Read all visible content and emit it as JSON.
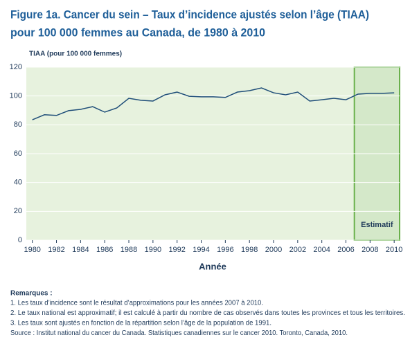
{
  "chart_data": {
    "type": "line",
    "title": [
      "Figure 1a. Cancer du sein – Taux d’incidence ajustés selon l’âge (TIAA)",
      "pour 100 000 femmes au Canada, de 1980 à 2010"
    ],
    "y_label": "TIAA (pour 100 000 femmes)",
    "x_label": "Année",
    "x": [
      1980,
      1981,
      1982,
      1983,
      1984,
      1985,
      1986,
      1987,
      1988,
      1989,
      1990,
      1991,
      1992,
      1993,
      1994,
      1995,
      1996,
      1997,
      1998,
      1999,
      2000,
      2001,
      2002,
      2003,
      2004,
      2005,
      2006,
      2007,
      2008,
      2009,
      2010
    ],
    "values": [
      83.5,
      87,
      86.5,
      89.8,
      90.7,
      92.6,
      88.8,
      91.7,
      98.4,
      97,
      96.5,
      100.8,
      102.7,
      99.8,
      99.4,
      99.4,
      99,
      102.7,
      103.7,
      105.6,
      102.2,
      100.8,
      102.7,
      96.5,
      97.4,
      98.4,
      97.4,
      101.3,
      101.8,
      101.8,
      102.2
    ],
    "color": "#1f4e79",
    "xlim": [
      1979.5,
      2010.45
    ],
    "ylim": [
      0,
      120
    ],
    "xticks": [
      1980,
      1982,
      1984,
      1986,
      1988,
      1990,
      1992,
      1994,
      1996,
      1998,
      2000,
      2002,
      2004,
      2006,
      2008,
      2010
    ],
    "yticks": [
      0,
      20,
      40,
      60,
      80,
      100,
      120
    ],
    "grid": true,
    "estimate_region": {
      "x": [
        2006.7,
        2010.45
      ],
      "label": "Estimatif",
      "color": "#d4e8c9",
      "border": "#6ab04c"
    },
    "notes_title": "Remarques :",
    "notes": [
      "1.  Les taux d’incidence sont le résultat d’approximations pour les années 2007 à 2010.",
      "2.  Le taux national est approximatif; il est calculé à partir du nombre de cas observés dans toutes les provinces et tous les territoires.",
      "3.  Les taux sont ajustés en fonction de la répartition selon l’âge de la population de 1991.",
      "Source : Institut national du cancer du Canada. Statistiques canadiennes sur le cancer 2010. Toronto, Canada, 2010."
    ]
  }
}
